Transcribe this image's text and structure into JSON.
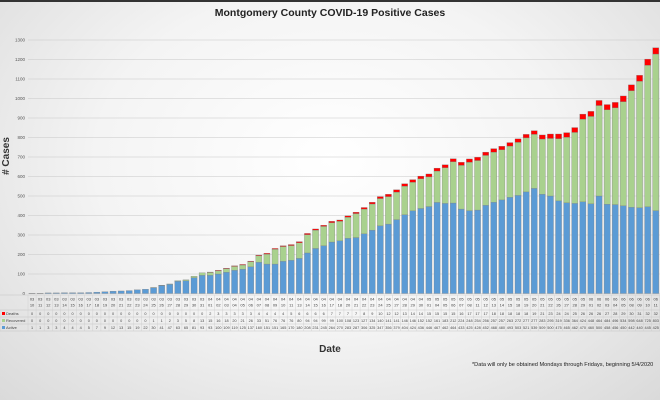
{
  "chart_data": {
    "type": "bar",
    "stacked": true,
    "title": "Montgomery County COVID-19 Positive Cases",
    "xlabel": "Date",
    "ylabel": "# Cases",
    "ylim": [
      0,
      1300
    ],
    "yticks": [
      0,
      100,
      200,
      300,
      400,
      500,
      600,
      700,
      800,
      900,
      1000,
      1100,
      1200,
      1300
    ],
    "grid": true,
    "legend": "data-table-left",
    "note": "*Data will only be obtained Mondays through Fridays, beginning 5/4/2020",
    "categories": [
      "03 10",
      "03 11",
      "03 12",
      "03 13",
      "03 14",
      "03 15",
      "03 16",
      "03 17",
      "03 18",
      "03 19",
      "03 20",
      "03 21",
      "03 22",
      "03 23",
      "03 24",
      "03 25",
      "03 26",
      "03 27",
      "03 28",
      "03 29",
      "03 30",
      "03 31",
      "04 01",
      "04 02",
      "04 03",
      "04 04",
      "04 05",
      "04 06",
      "04 07",
      "04 08",
      "04 09",
      "04 10",
      "04 11",
      "04 13",
      "04 14",
      "04 15",
      "04 16",
      "04 17",
      "04 18",
      "04 20",
      "04 21",
      "04 22",
      "04 23",
      "04 24",
      "04 25",
      "04 27",
      "04 28",
      "04 29",
      "04 30",
      "05 01",
      "05 04",
      "05 05",
      "05 06",
      "05 07",
      "05 08",
      "05 11",
      "05 12",
      "05 13",
      "05 14",
      "05 15",
      "05 18",
      "05 19",
      "05 20",
      "05 21",
      "05 22",
      "05 26",
      "05 27",
      "05 28",
      "05 29",
      "06 01",
      "06 02",
      "06 03",
      "06 04",
      "06 05",
      "06 08",
      "06 09",
      "06 10",
      "06 11"
    ],
    "series": [
      {
        "name": "Active",
        "color": "#5b9bd5",
        "values": [
          1,
          1,
          3,
          3,
          4,
          4,
          4,
          5,
          7,
          9,
          12,
          13,
          15,
          19,
          22,
          30,
          41,
          47,
          63,
          65,
          81,
          93,
          93,
          100,
          109,
          119,
          125,
          137,
          160,
          151,
          151,
          165,
          170,
          180,
          208,
          231,
          245,
          264,
          270,
          283,
          287,
          306,
          325,
          347,
          356,
          379,
          404,
          424,
          436,
          446,
          467,
          462,
          464,
          433,
          425,
          428,
          452,
          468,
          480,
          493,
          503,
          521,
          539,
          509,
          500,
          475,
          465,
          462,
          470,
          460,
          500,
          458,
          456,
          450,
          442,
          440,
          445,
          425
        ]
      },
      {
        "name": "Recovered",
        "color": "#a9d18e",
        "values": [
          0,
          0,
          0,
          0,
          0,
          0,
          0,
          0,
          0,
          0,
          0,
          0,
          0,
          0,
          0,
          1,
          1,
          2,
          3,
          5,
          8,
          13,
          15,
          16,
          18,
          20,
          21,
          26,
          33,
          51,
          76,
          76,
          76,
          80,
          94,
          94,
          99,
          99,
          100,
          108,
          123,
          127,
          134,
          140,
          141,
          141,
          146,
          146,
          152,
          152,
          161,
          183,
          212,
          224,
          248,
          254,
          256,
          257,
          257,
          263,
          272,
          277,
          277,
          283,
          295,
          319,
          336,
          364,
          424,
          448,
          464,
          484,
          496,
          534,
          598,
          648,
          725,
          803
        ]
      },
      {
        "name": "Deaths",
        "color": "#ff0000",
        "values": [
          0,
          0,
          0,
          0,
          0,
          0,
          0,
          0,
          0,
          0,
          0,
          0,
          0,
          0,
          0,
          0,
          0,
          0,
          0,
          0,
          0,
          0,
          2,
          3,
          3,
          3,
          3,
          3,
          4,
          4,
          4,
          4,
          5,
          6,
          6,
          6,
          6,
          7,
          7,
          7,
          7,
          8,
          9,
          10,
          12,
          12,
          13,
          14,
          14,
          15,
          15,
          15,
          15,
          16,
          17,
          17,
          17,
          18,
          18,
          18,
          18,
          18,
          19,
          21,
          23,
          24,
          24,
          25,
          26,
          26,
          26,
          27,
          28,
          29,
          30,
          31,
          32,
          32
        ]
      }
    ]
  }
}
